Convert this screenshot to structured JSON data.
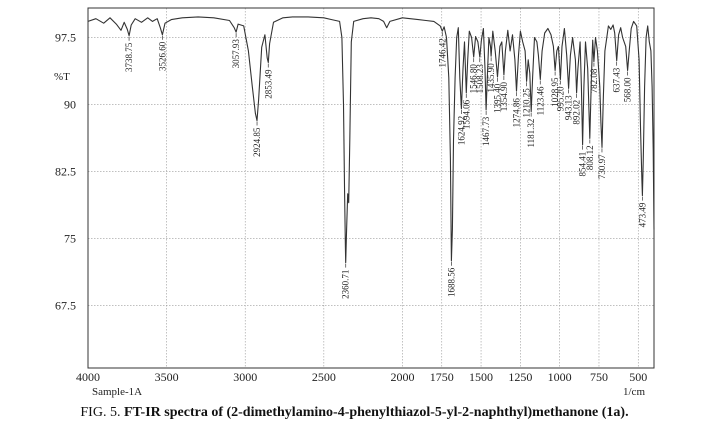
{
  "chart_data": {
    "type": "line",
    "sample_label": "Sample-1A",
    "x_unit_label": "1/cm",
    "y_unit_label": "%T",
    "xlim": [
      4000,
      400
    ],
    "ylim": [
      60.5,
      100.8
    ],
    "x_ticks": [
      4000,
      3500,
      3000,
      2500,
      2000,
      1750,
      1500,
      1250,
      1000,
      750,
      500
    ],
    "y_ticks": [
      97.5,
      90,
      82.5,
      75,
      67.5
    ],
    "y_tick_labels": [
      "97.5",
      "90",
      "82.5",
      "75",
      "67.5"
    ],
    "grid": true,
    "spectrum": [
      [
        4000,
        99.3
      ],
      [
        3950,
        99.6
      ],
      [
        3900,
        99.1
      ],
      [
        3860,
        99.7
      ],
      [
        3820,
        99.0
      ],
      [
        3790,
        98.3
      ],
      [
        3770,
        99.2
      ],
      [
        3750,
        98.4
      ],
      [
        3738.75,
        97.7
      ],
      [
        3725,
        98.9
      ],
      [
        3700,
        99.6
      ],
      [
        3660,
        99.2
      ],
      [
        3620,
        99.7
      ],
      [
        3590,
        99.3
      ],
      [
        3560,
        99.6
      ],
      [
        3540,
        98.6
      ],
      [
        3526.6,
        97.8
      ],
      [
        3510,
        99.1
      ],
      [
        3470,
        99.5
      ],
      [
        3400,
        99.7
      ],
      [
        3300,
        99.8
      ],
      [
        3200,
        99.7
      ],
      [
        3100,
        99.4
      ],
      [
        3070,
        98.6
      ],
      [
        3057.93,
        98.1
      ],
      [
        3045,
        99.0
      ],
      [
        3010,
        98.8
      ],
      [
        2980,
        96.0
      ],
      [
        2955,
        92.0
      ],
      [
        2935,
        89.0
      ],
      [
        2924.85,
        88.2
      ],
      [
        2915,
        90.5
      ],
      [
        2895,
        96.4
      ],
      [
        2875,
        97.8
      ],
      [
        2860,
        95.2
      ],
      [
        2853.49,
        94.7
      ],
      [
        2845,
        96.8
      ],
      [
        2820,
        99.2
      ],
      [
        2760,
        99.7
      ],
      [
        2700,
        99.8
      ],
      [
        2600,
        99.8
      ],
      [
        2500,
        99.7
      ],
      [
        2450,
        99.5
      ],
      [
        2400,
        99.3
      ],
      [
        2385,
        97.5
      ],
      [
        2375,
        90.0
      ],
      [
        2368,
        80.0
      ],
      [
        2363,
        74.0
      ],
      [
        2360.71,
        72.3
      ],
      [
        2355,
        76.0
      ],
      [
        2348,
        80.0
      ],
      [
        2342,
        79.0
      ],
      [
        2335,
        86.0
      ],
      [
        2325,
        97.0
      ],
      [
        2310,
        99.3
      ],
      [
        2250,
        99.6
      ],
      [
        2200,
        99.7
      ],
      [
        2150,
        99.6
      ],
      [
        2120,
        99.3
      ],
      [
        2100,
        98.6
      ],
      [
        2080,
        99.3
      ],
      [
        2000,
        99.7
      ],
      [
        1950,
        99.6
      ],
      [
        1900,
        99.5
      ],
      [
        1850,
        99.4
      ],
      [
        1800,
        99.3
      ],
      [
        1760,
        98.8
      ],
      [
        1746.42,
        98.2
      ],
      [
        1735,
        98.7
      ],
      [
        1720,
        97.5
      ],
      [
        1705,
        93.0
      ],
      [
        1695,
        84.0
      ],
      [
        1688.56,
        72.5
      ],
      [
        1682,
        76.0
      ],
      [
        1675,
        86.0
      ],
      [
        1665,
        93.0
      ],
      [
        1655,
        97.5
      ],
      [
        1645,
        98.6
      ],
      [
        1635,
        93.0
      ],
      [
        1624.92,
        89.5
      ],
      [
        1615,
        94.0
      ],
      [
        1605,
        97.0
      ],
      [
        1594.06,
        91.3
      ],
      [
        1585,
        95.0
      ],
      [
        1575,
        98.2
      ],
      [
        1560,
        97.5
      ],
      [
        1546.8,
        95.3
      ],
      [
        1535,
        97.6
      ],
      [
        1520,
        97.0
      ],
      [
        1508.23,
        95.3
      ],
      [
        1498,
        97.2
      ],
      [
        1485,
        98.5
      ],
      [
        1475,
        94.0
      ],
      [
        1467.73,
        89.4
      ],
      [
        1460,
        93.0
      ],
      [
        1450,
        97.5
      ],
      [
        1440,
        96.5
      ],
      [
        1435.9,
        95.4
      ],
      [
        1425,
        98.2
      ],
      [
        1410,
        96.0
      ],
      [
        1395.4,
        93.1
      ],
      [
        1380,
        96.5
      ],
      [
        1368,
        97.0
      ],
      [
        1354.9,
        93.3
      ],
      [
        1345,
        96.0
      ],
      [
        1330,
        98.3
      ],
      [
        1315,
        96.0
      ],
      [
        1300,
        97.8
      ],
      [
        1285,
        95.0
      ],
      [
        1274.86,
        91.5
      ],
      [
        1262,
        95.5
      ],
      [
        1250,
        98.2
      ],
      [
        1235,
        97.0
      ],
      [
        1220,
        96.0
      ],
      [
        1210.25,
        92.6
      ],
      [
        1200,
        95.0
      ],
      [
        1190,
        93.5
      ],
      [
        1181.32,
        89.2
      ],
      [
        1172,
        93.0
      ],
      [
        1160,
        97.5
      ],
      [
        1145,
        97.0
      ],
      [
        1135,
        95.5
      ],
      [
        1123.46,
        92.8
      ],
      [
        1112,
        96.0
      ],
      [
        1095,
        98.0
      ],
      [
        1075,
        98.5
      ],
      [
        1055,
        97.8
      ],
      [
        1040,
        96.5
      ],
      [
        1028.95,
        93.8
      ],
      [
        1018,
        96.0
      ],
      [
        1008,
        96.5
      ],
      [
        995.2,
        92.8
      ],
      [
        985,
        96.5
      ],
      [
        970,
        98.5
      ],
      [
        955,
        95.5
      ],
      [
        943.13,
        91.8
      ],
      [
        932,
        95.5
      ],
      [
        918,
        97.5
      ],
      [
        900,
        95.0
      ],
      [
        892.02,
        91.3
      ],
      [
        884,
        94.0
      ],
      [
        870,
        97.0
      ],
      [
        862,
        92.0
      ],
      [
        854.41,
        85.5
      ],
      [
        846,
        92.0
      ],
      [
        836,
        97.0
      ],
      [
        822,
        94.0
      ],
      [
        808.12,
        86.2
      ],
      [
        798,
        93.0
      ],
      [
        790,
        97.2
      ],
      [
        782.08,
        94.8
      ],
      [
        772,
        97.5
      ],
      [
        760,
        96.0
      ],
      [
        745,
        92.0
      ],
      [
        738,
        88.0
      ],
      [
        730.97,
        85.2
      ],
      [
        722,
        91.0
      ],
      [
        712,
        96.0
      ],
      [
        700,
        97.5
      ],
      [
        690,
        98.8
      ],
      [
        675,
        98.4
      ],
      [
        660,
        98.9
      ],
      [
        650,
        98.0
      ],
      [
        637.43,
        94.9
      ],
      [
        625,
        97.8
      ],
      [
        612,
        98.6
      ],
      [
        600,
        97.5
      ],
      [
        580,
        96.5
      ],
      [
        568,
        93.8
      ],
      [
        558,
        96.0
      ],
      [
        545,
        98.5
      ],
      [
        530,
        99.3
      ],
      [
        510,
        98.8
      ],
      [
        495,
        95.0
      ],
      [
        485,
        87.0
      ],
      [
        477,
        81.5
      ],
      [
        473.49,
        79.8
      ],
      [
        468,
        84.0
      ],
      [
        460,
        92.0
      ],
      [
        450,
        97.5
      ],
      [
        440,
        98.8
      ],
      [
        430,
        97.0
      ],
      [
        420,
        96.0
      ],
      [
        412,
        92.0
      ],
      [
        405,
        85.0
      ],
      [
        400,
        76.0
      ]
    ],
    "peaks": [
      {
        "x": 3738.75,
        "y": 97.7,
        "label": "3738.75"
      },
      {
        "x": 3526.6,
        "y": 97.8,
        "label": "3526.60"
      },
      {
        "x": 3057.93,
        "y": 98.1,
        "label": "3057.93"
      },
      {
        "x": 2924.85,
        "y": 88.2,
        "label": "2924.85"
      },
      {
        "x": 2853.49,
        "y": 94.7,
        "label": "2853.49"
      },
      {
        "x": 2360.71,
        "y": 72.3,
        "label": "2360.71"
      },
      {
        "x": 1746.42,
        "y": 98.2,
        "label": "1746.42"
      },
      {
        "x": 1688.56,
        "y": 72.5,
        "label": "1688.56"
      },
      {
        "x": 1624.92,
        "y": 89.5,
        "label": "1624.92"
      },
      {
        "x": 1594.06,
        "y": 91.3,
        "label": "1594.06"
      },
      {
        "x": 1546.8,
        "y": 95.3,
        "label": "1546.80"
      },
      {
        "x": 1508.23,
        "y": 95.3,
        "label": "1508.23"
      },
      {
        "x": 1467.73,
        "y": 89.4,
        "label": "1467.73"
      },
      {
        "x": 1435.9,
        "y": 95.4,
        "label": "1435.90"
      },
      {
        "x": 1395.4,
        "y": 93.1,
        "label": "1395.40"
      },
      {
        "x": 1354.9,
        "y": 93.3,
        "label": "1354.90"
      },
      {
        "x": 1274.86,
        "y": 91.5,
        "label": "1274.86"
      },
      {
        "x": 1210.25,
        "y": 92.6,
        "label": "1210.25"
      },
      {
        "x": 1181.32,
        "y": 89.2,
        "label": "1181.32"
      },
      {
        "x": 1123.46,
        "y": 92.8,
        "label": "1123.46"
      },
      {
        "x": 1028.95,
        "y": 93.8,
        "label": "1028.95"
      },
      {
        "x": 995.2,
        "y": 92.8,
        "label": "995.20"
      },
      {
        "x": 943.13,
        "y": 91.8,
        "label": "943.13"
      },
      {
        "x": 892.02,
        "y": 91.3,
        "label": "892.02"
      },
      {
        "x": 854.41,
        "y": 85.5,
        "label": "854.41"
      },
      {
        "x": 808.12,
        "y": 86.2,
        "label": "808.12"
      },
      {
        "x": 782.08,
        "y": 94.8,
        "label": "782.08"
      },
      {
        "x": 730.97,
        "y": 85.2,
        "label": "730.97"
      },
      {
        "x": 637.43,
        "y": 94.9,
        "label": "637.43"
      },
      {
        "x": 568.0,
        "y": 93.8,
        "label": "568.00"
      },
      {
        "x": 473.49,
        "y": 79.8,
        "label": "473.49"
      }
    ]
  },
  "caption": {
    "prefix": "FIG. 5. ",
    "text": "FT-IR spectra of (2-dimethylamino-4-phenylthiazol-5-yl-2-naphthyl)methanone (1a)."
  }
}
